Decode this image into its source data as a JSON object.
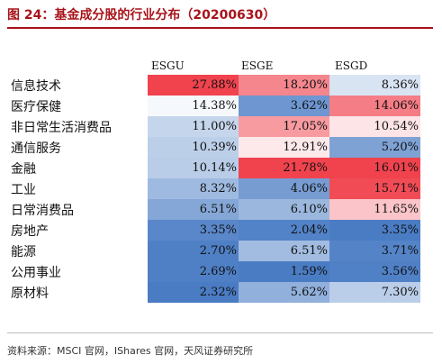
{
  "title": "图 24：基金成分股的行业分布（20200630）",
  "source": "资料来源：MSCI 官网，IShares 官网，天风证券研究所",
  "colors": {
    "title": "#a8141b",
    "high": "#f0434e",
    "mid": "#ffffff",
    "low": "#4a7cc4"
  },
  "chart_data": {
    "type": "table",
    "columns": [
      "ESGU",
      "ESGE",
      "ESGD"
    ],
    "rows": [
      {
        "label": "信息技术",
        "display": [
          "27.88%",
          "18.20%",
          "8.36%"
        ],
        "values": [
          27.88,
          18.2,
          8.36
        ]
      },
      {
        "label": "医疗保健",
        "display": [
          "14.38%",
          "3.62%",
          "14.06%"
        ],
        "values": [
          14.38,
          3.62,
          14.06
        ]
      },
      {
        "label": "非日常生活消费品",
        "display": [
          "11.00%",
          "17.05%",
          "10.54%"
        ],
        "values": [
          11.0,
          17.05,
          10.54
        ]
      },
      {
        "label": "通信服务",
        "display": [
          "10.39%",
          "12.91%",
          "5.20%"
        ],
        "values": [
          10.39,
          12.91,
          5.2
        ]
      },
      {
        "label": "金融",
        "display": [
          "10.14%",
          "21.78%",
          "16.01%"
        ],
        "values": [
          10.14,
          21.78,
          16.01
        ]
      },
      {
        "label": "工业",
        "display": [
          "8.32%",
          "4.06%",
          "15.71%"
        ],
        "values": [
          8.32,
          4.06,
          15.71
        ]
      },
      {
        "label": "日常消费品",
        "display": [
          "6.51%",
          "6.10%",
          "11.65%"
        ],
        "values": [
          6.51,
          6.1,
          11.65
        ]
      },
      {
        "label": "房地产",
        "display": [
          "3.35%",
          "2.04%",
          "3.35%"
        ],
        "values": [
          3.35,
          2.04,
          3.35
        ]
      },
      {
        "label": "能源",
        "display": [
          "2.70%",
          "6.51%",
          "3.71%"
        ],
        "values": [
          2.7,
          6.51,
          3.71
        ]
      },
      {
        "label": "公用事业",
        "display": [
          "2.69%",
          "1.59%",
          "3.56%"
        ],
        "values": [
          2.69,
          1.59,
          3.56
        ]
      },
      {
        "label": "原材料",
        "display": [
          "2.32%",
          "5.62%",
          "7.30%"
        ],
        "values": [
          2.32,
          5.62,
          7.3
        ]
      }
    ]
  }
}
